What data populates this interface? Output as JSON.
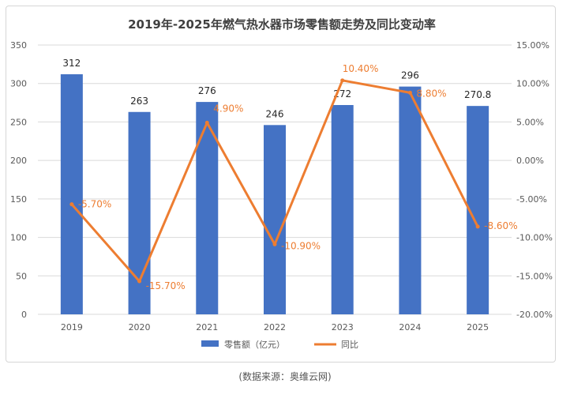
{
  "chart_data": {
    "type": "bar+line",
    "title": "2019年-2025年燃气热水器市场零售额走势及同比变动率",
    "categories": [
      "2019",
      "2020",
      "2021",
      "2022",
      "2023",
      "2024",
      "2025"
    ],
    "series": [
      {
        "name": "零售额（亿元）",
        "kind": "bar",
        "axis": "left",
        "color": "#4472c4",
        "values": [
          312,
          263,
          276,
          246,
          272,
          296,
          270.8
        ],
        "labels": [
          "312",
          "263",
          "276",
          "246",
          "272",
          "296",
          "270.8"
        ]
      },
      {
        "name": "同比",
        "kind": "line",
        "axis": "right",
        "color": "#ed7d31",
        "values": [
          -5.7,
          -15.7,
          4.9,
          -10.9,
          10.4,
          8.8,
          -8.6
        ],
        "labels": [
          "-5.70%",
          "-15.70%",
          "4.90%",
          "-10.90%",
          "10.40%",
          "8.80%",
          "-8.60%"
        ]
      }
    ],
    "y_left": {
      "range": [
        0,
        350
      ],
      "ticks": [
        "0",
        "50",
        "100",
        "150",
        "200",
        "250",
        "300",
        "350"
      ]
    },
    "y_right": {
      "range": [
        -20,
        15
      ],
      "ticks": [
        "-20.00%",
        "-15.00%",
        "-10.00%",
        "-5.00%",
        "0.00%",
        "5.00%",
        "10.00%",
        "15.00%"
      ]
    },
    "grid": true,
    "legend_position": "bottom"
  },
  "source": "(数据来源：奥维云网)",
  "colors": {
    "bar": "#4472c4",
    "line": "#ed7d31",
    "grid": "#d9d9d9",
    "text": "#595959"
  }
}
